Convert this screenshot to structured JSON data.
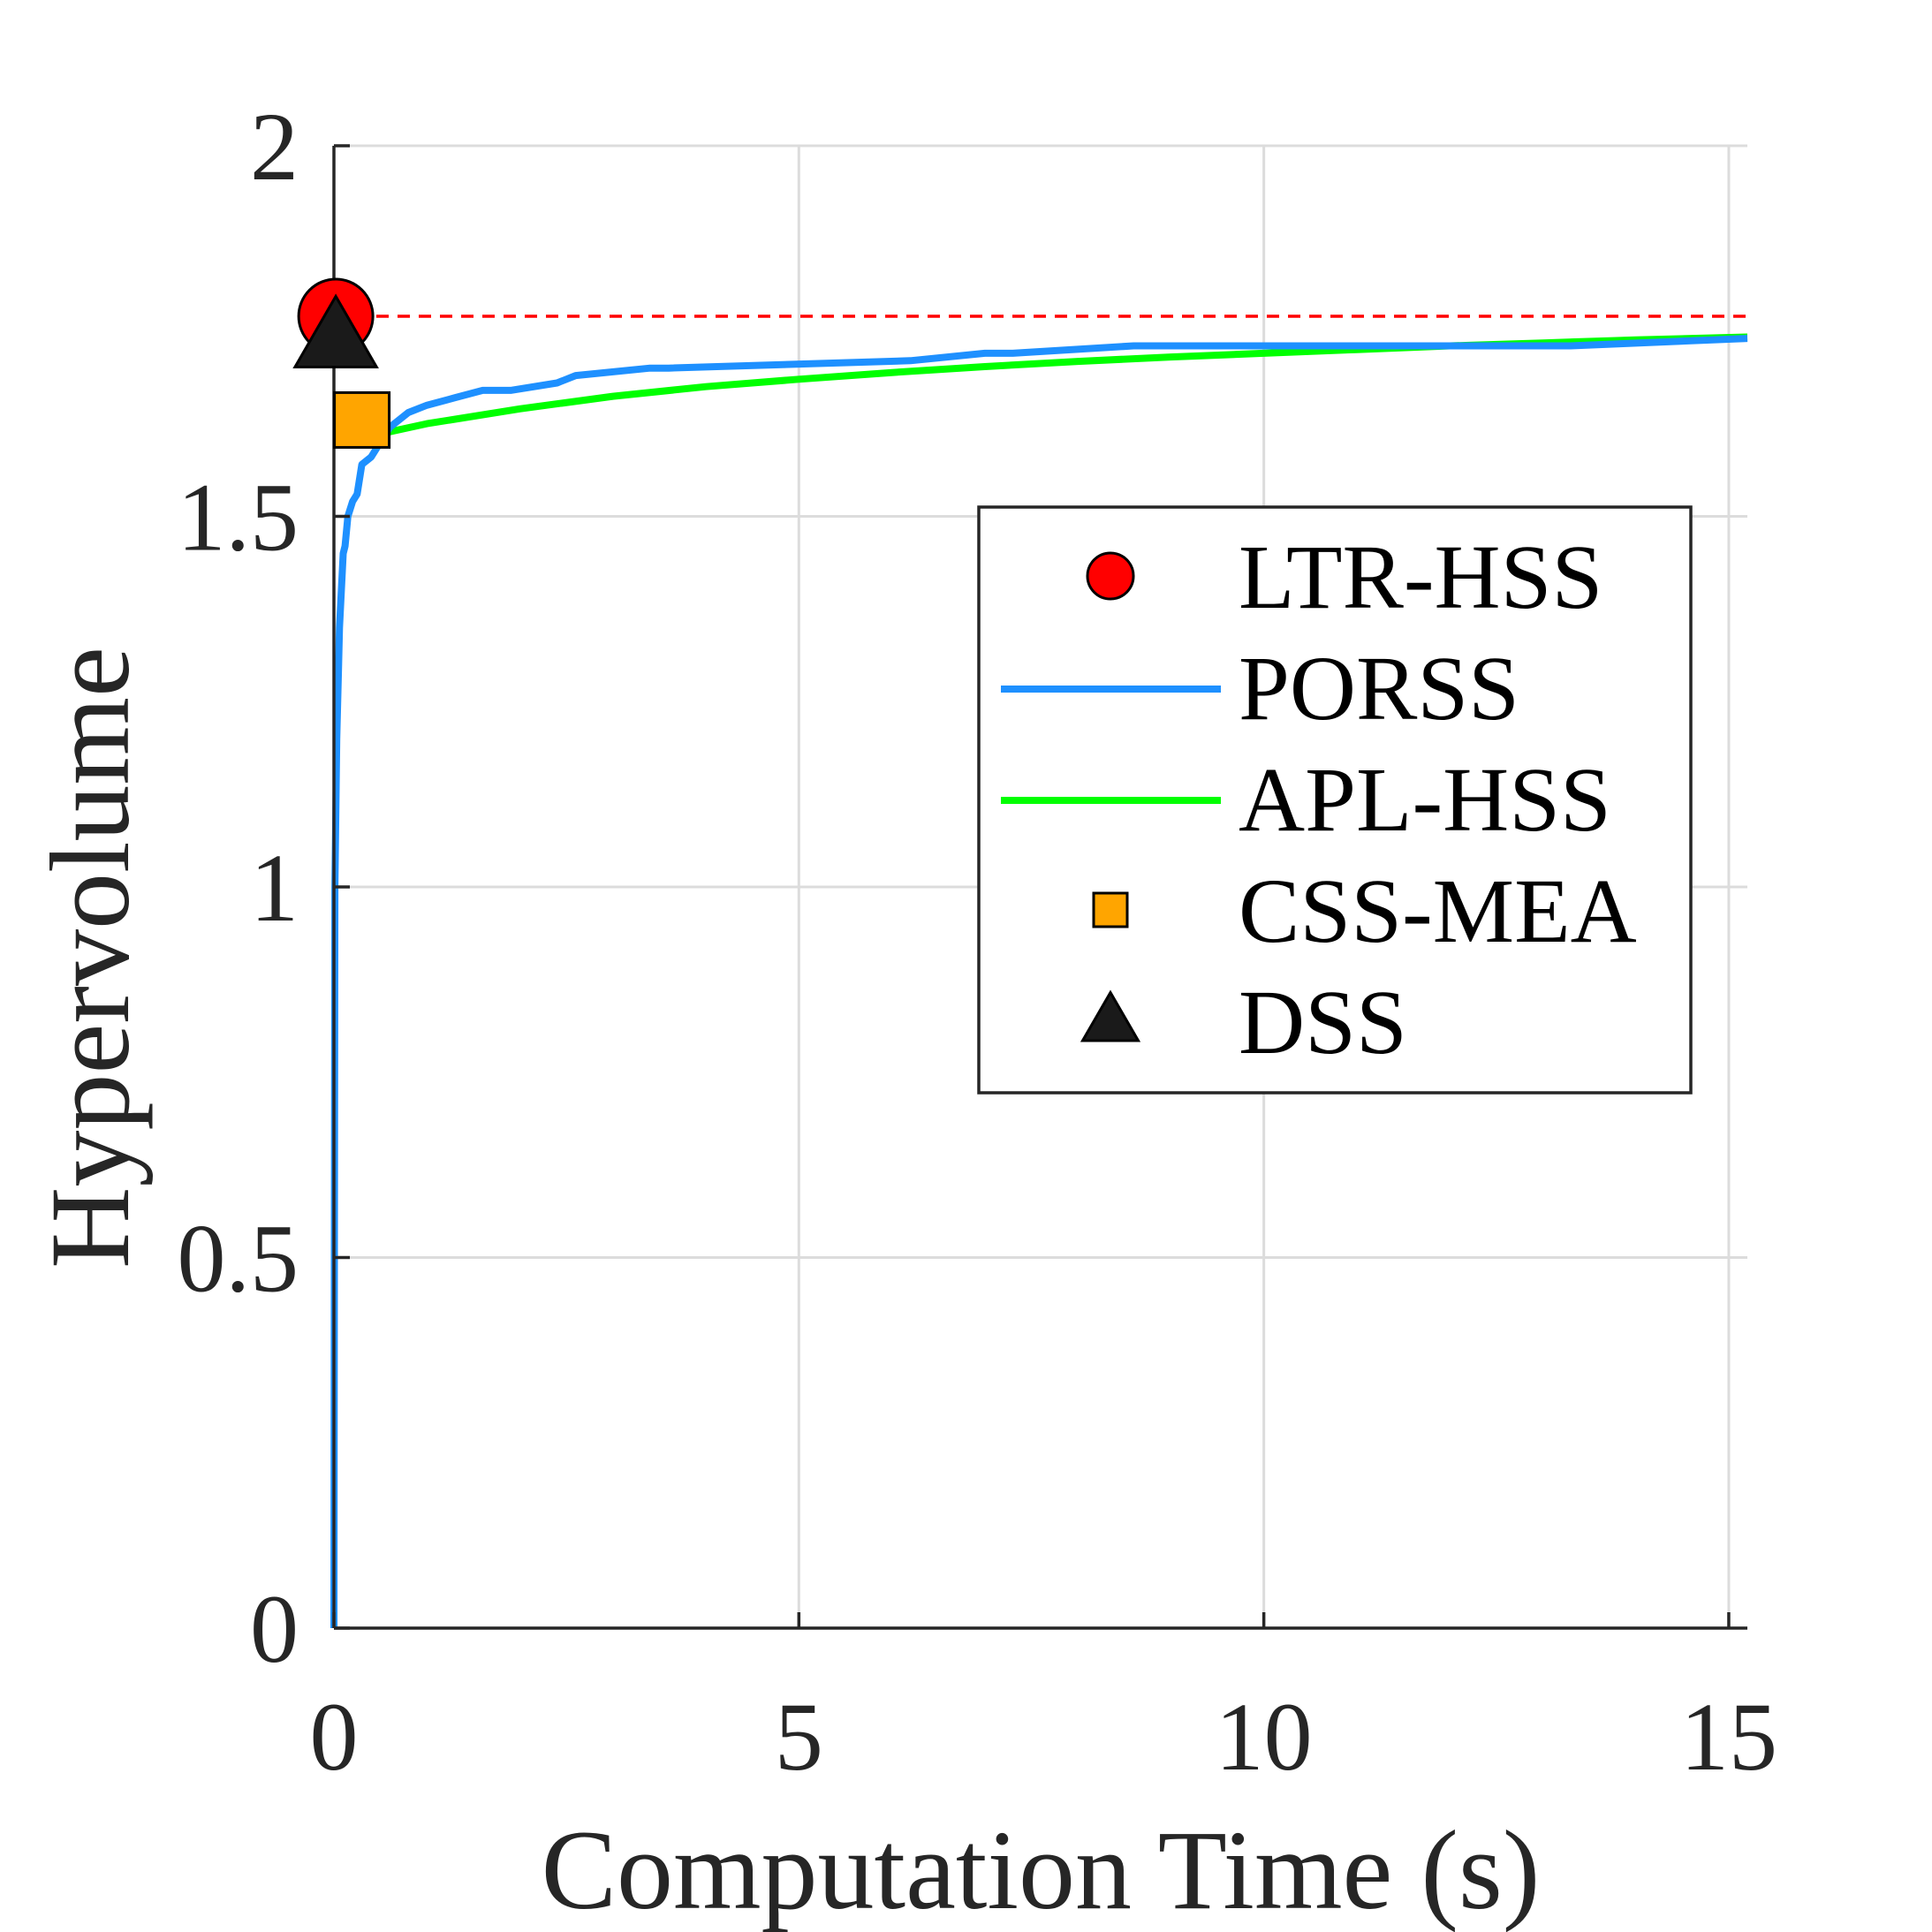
{
  "chart_data": {
    "type": "line",
    "title": "",
    "xlabel": "Computation Time (s)",
    "ylabel": "Hypervolume",
    "xlim": [
      0,
      15.2
    ],
    "ylim": [
      0,
      2
    ],
    "xticks": [
      0,
      5,
      10,
      15
    ],
    "xtick_labels": [
      "0",
      "5",
      "10",
      "15"
    ],
    "yticks": [
      0,
      0.5,
      1,
      1.5,
      2
    ],
    "ytick_labels": [
      "0",
      "0.5",
      "1",
      "1.5",
      "2"
    ],
    "grid": true,
    "legend_position": "center-right",
    "reference_line": {
      "y": 1.77,
      "color": "#ff0000",
      "style": "dashed"
    },
    "series": [
      {
        "name": "LTR-HSS",
        "kind": "marker",
        "marker": "circle",
        "color": "#ff0000",
        "x": [
          0.02
        ],
        "y": [
          1.77
        ]
      },
      {
        "name": "PORSS",
        "kind": "line",
        "color": "#1e90ff",
        "x": [
          0,
          0.005,
          0.01,
          0.03,
          0.05,
          0.06,
          0.08,
          0.1,
          0.12,
          0.15,
          0.2,
          0.25,
          0.3,
          0.4,
          0.5,
          0.6,
          0.7,
          0.8,
          1.0,
          1.3,
          1.6,
          1.9,
          2.4,
          2.6,
          3.4,
          3.6,
          6.2,
          7.0,
          7.3,
          8.6,
          9.4,
          10.7,
          13.3,
          15.2
        ],
        "y": [
          0,
          0.5,
          1.0,
          1.2,
          1.3,
          1.35,
          1.4,
          1.45,
          1.46,
          1.5,
          1.52,
          1.53,
          1.57,
          1.58,
          1.6,
          1.62,
          1.63,
          1.64,
          1.65,
          1.66,
          1.67,
          1.67,
          1.68,
          1.69,
          1.7,
          1.7,
          1.71,
          1.72,
          1.72,
          1.73,
          1.73,
          1.73,
          1.73,
          1.74
        ]
      },
      {
        "name": "APL-HSS",
        "kind": "line",
        "color": "#00ff00",
        "x": [
          0.45,
          1.0,
          2.0,
          3.0,
          4.0,
          5.0,
          6.0,
          7.0,
          8.0,
          9.0,
          10.0,
          11.0,
          12.0,
          13.0,
          14.0,
          15.2
        ],
        "y": [
          1.61,
          1.625,
          1.645,
          1.662,
          1.675,
          1.685,
          1.694,
          1.702,
          1.709,
          1.715,
          1.72,
          1.725,
          1.73,
          1.734,
          1.738,
          1.742
        ]
      },
      {
        "name": "CSS-MEA",
        "kind": "marker",
        "marker": "square",
        "color": "#ffa500",
        "x": [
          0.3
        ],
        "y": [
          1.63
        ]
      },
      {
        "name": "DSS",
        "kind": "marker",
        "marker": "triangle",
        "color": "#1a1a1a",
        "x": [
          0.02
        ],
        "y": [
          1.74
        ]
      }
    ]
  }
}
